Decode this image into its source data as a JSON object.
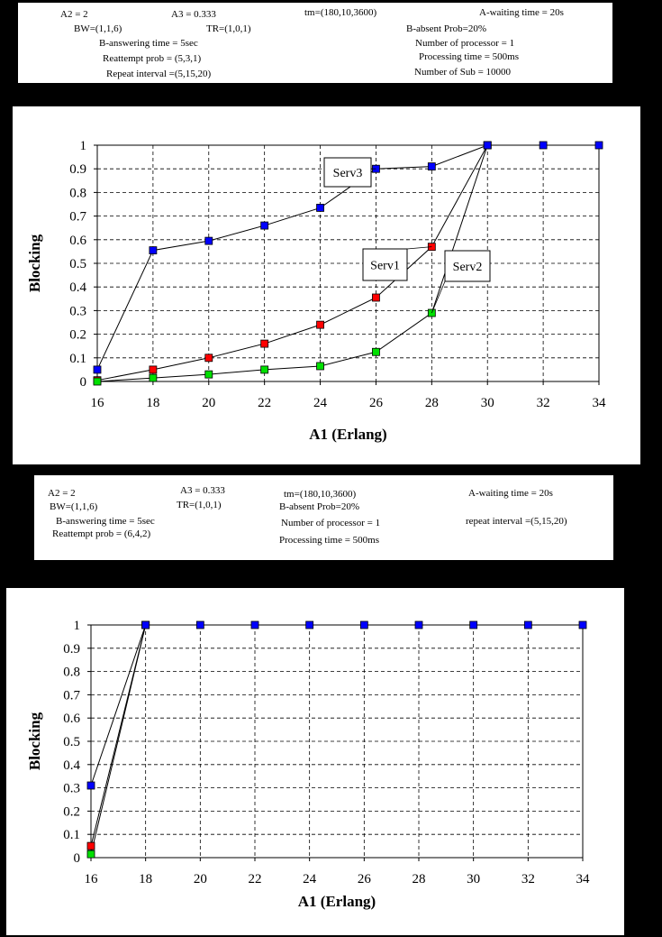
{
  "params_top": [
    {
      "name": "param-a2",
      "text": "A2 = 2"
    },
    {
      "name": "param-a3",
      "text": "A3 = 0.333"
    },
    {
      "name": "param-tm",
      "text": "tm=(180,10,3600)"
    },
    {
      "name": "param-a-waiting",
      "text": "A-waiting time = 20s"
    },
    {
      "name": "param-bw",
      "text": "BW=(1,1,6)"
    },
    {
      "name": "param-tr",
      "text": "TR=(1,0,1)"
    },
    {
      "name": "param-b-absent",
      "text": "B-absent Prob=20%"
    },
    {
      "name": "param-b-answering",
      "text": "B-answering time = 5sec"
    },
    {
      "name": "param-processors",
      "text": "Number of processor = 1"
    },
    {
      "name": "param-reattempt",
      "text": "Reattempt prob = (5,3,1)"
    },
    {
      "name": "param-processing",
      "text": "Processing time = 500ms"
    },
    {
      "name": "param-repeat",
      "text": "Repeat interval =(5,15,20)"
    },
    {
      "name": "param-subs",
      "text": "Number of Sub = 10000"
    }
  ],
  "params_bottom": [
    {
      "name": "param-a2",
      "text": "A2 = 2"
    },
    {
      "name": "param-a3",
      "text": "A3 = 0.333"
    },
    {
      "name": "param-tm",
      "text": "tm=(180,10,3600)"
    },
    {
      "name": "param-a-waiting",
      "text": "A-waiting time = 20s"
    },
    {
      "name": "param-bw",
      "text": "BW=(1,1,6)"
    },
    {
      "name": "param-tr",
      "text": "TR=(1,0,1)"
    },
    {
      "name": "param-b-absent",
      "text": "B-absent Prob=20%"
    },
    {
      "name": "param-b-answering",
      "text": "B-answering time = 5sec"
    },
    {
      "name": "param-processors",
      "text": "Number of processor = 1"
    },
    {
      "name": "param-repeat",
      "text": "repeat interval =(5,15,20)"
    },
    {
      "name": "param-reattempt",
      "text": "Reattempt prob = (6,4,2)"
    },
    {
      "name": "param-processing",
      "text": "Processing time = 500ms"
    }
  ],
  "colors": {
    "serv1": "#ff0000",
    "serv2": "#00e000",
    "serv3": "#0000ff",
    "line": "#000000",
    "grid": "#000000"
  },
  "chart_data": [
    {
      "type": "line",
      "xlabel": "A1 (Erlang)",
      "ylabel": "Blocking",
      "xlim": [
        16,
        34
      ],
      "ylim": [
        0,
        1
      ],
      "xticks": [
        "16",
        "18",
        "20",
        "22",
        "24",
        "26",
        "28",
        "30",
        "32",
        "34"
      ],
      "yticks": [
        "0",
        "0.1",
        "0.2",
        "0.3",
        "0.4",
        "0.5",
        "0.6",
        "0.7",
        "0.8",
        "0.9",
        "1"
      ],
      "grid": true,
      "series": [
        {
          "name": "Serv1",
          "color": "#ff0000",
          "x": [
            16,
            18,
            20,
            22,
            24,
            26,
            28,
            30
          ],
          "y": [
            0.005,
            0.05,
            0.1,
            0.16,
            0.24,
            0.355,
            0.57,
            1.0
          ]
        },
        {
          "name": "Serv2",
          "color": "#00e000",
          "x": [
            16,
            18,
            20,
            22,
            24,
            26,
            28,
            30
          ],
          "y": [
            0.0,
            0.015,
            0.03,
            0.05,
            0.065,
            0.125,
            0.29,
            1.0
          ]
        },
        {
          "name": "Serv3",
          "color": "#0000ff",
          "x": [
            16,
            18,
            20,
            22,
            24,
            26,
            28,
            30,
            32,
            34
          ],
          "y": [
            0.05,
            0.555,
            0.595,
            0.66,
            0.735,
            0.9,
            0.91,
            1.0,
            1.0,
            1.0
          ]
        }
      ],
      "annotations": [
        {
          "text": "Serv3",
          "series": "Serv3"
        },
        {
          "text": "Serv1",
          "series": "Serv1"
        },
        {
          "text": "Serv2",
          "series": "Serv2"
        }
      ]
    },
    {
      "type": "line",
      "xlabel": "A1 (Erlang)",
      "ylabel": "Blocking",
      "xlim": [
        16,
        34
      ],
      "ylim": [
        0,
        1
      ],
      "xticks": [
        "16",
        "18",
        "20",
        "22",
        "24",
        "26",
        "28",
        "30",
        "32",
        "34"
      ],
      "yticks": [
        "0",
        "0.1",
        "0.2",
        "0.3",
        "0.4",
        "0.5",
        "0.6",
        "0.7",
        "0.8",
        "0.9",
        "1"
      ],
      "grid": true,
      "series": [
        {
          "name": "Serv1",
          "color": "#ff0000",
          "x": [
            16,
            18
          ],
          "y": [
            0.05,
            1.0
          ]
        },
        {
          "name": "Serv2",
          "color": "#00e000",
          "x": [
            16,
            18
          ],
          "y": [
            0.015,
            1.0
          ]
        },
        {
          "name": "Serv3",
          "color": "#0000ff",
          "x": [
            16,
            18,
            20,
            22,
            24,
            26,
            28,
            30,
            32,
            34
          ],
          "y": [
            0.31,
            1.0,
            1.0,
            1.0,
            1.0,
            1.0,
            1.0,
            1.0,
            1.0,
            1.0
          ]
        }
      ],
      "annotations": []
    }
  ]
}
